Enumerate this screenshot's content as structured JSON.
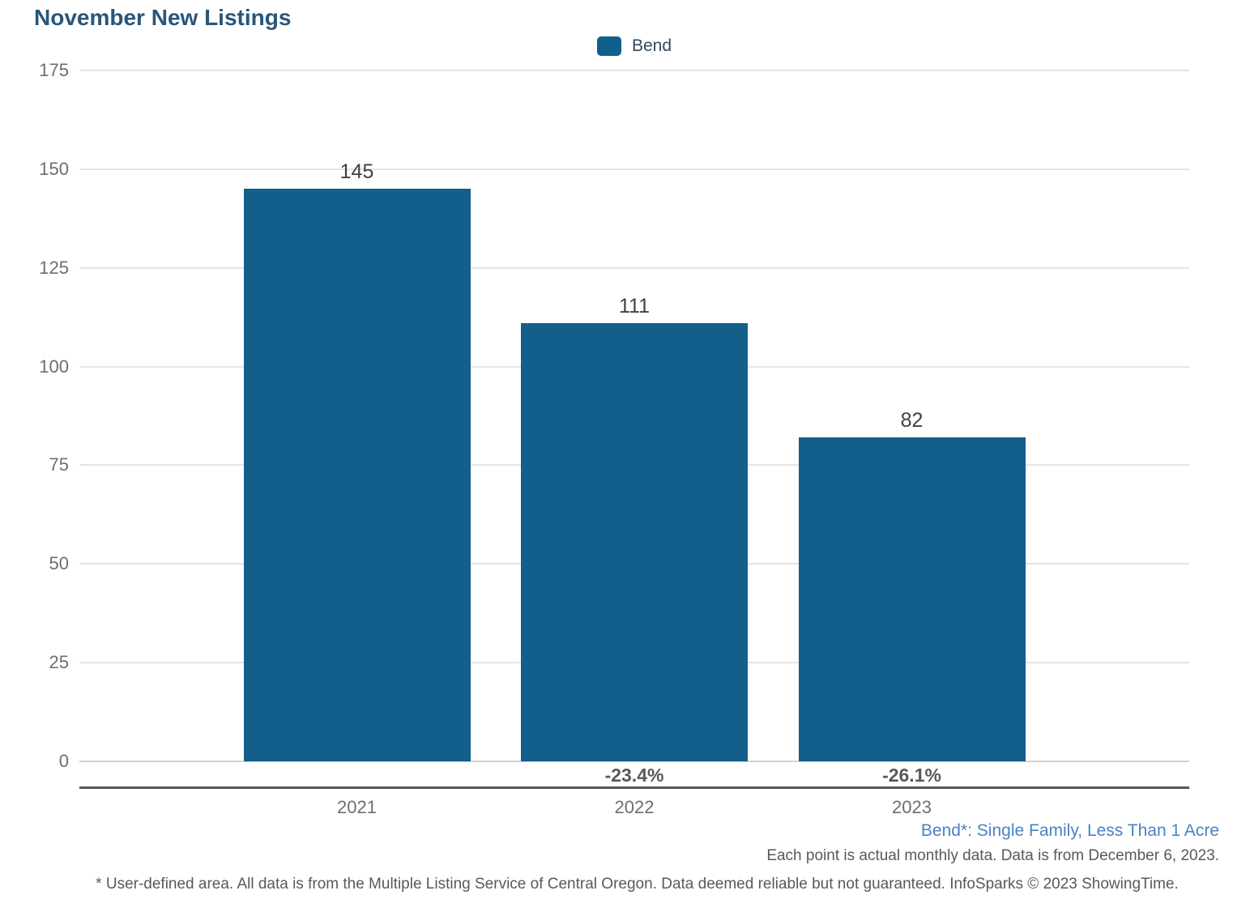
{
  "title": "November New Listings",
  "legend": {
    "label": "Bend"
  },
  "colors": {
    "bar": "#135F8C",
    "title": "#29567A",
    "legend_text": "#34495E",
    "axis_text": "#6D6E71",
    "value_text": "#414042",
    "pct_text": "#58595B",
    "subtitle_blue": "#4A82C4",
    "note_text": "#58595B",
    "gridline": "#E4E4E4",
    "zero_gridline": "#D2D2D2",
    "axis_line": "#58595B"
  },
  "chart_data": {
    "type": "bar",
    "title": "November New Listings",
    "categories": [
      "2021",
      "2022",
      "2023"
    ],
    "series": [
      {
        "name": "Bend",
        "values": [
          145,
          111,
          82
        ]
      }
    ],
    "value_labels": [
      "145",
      "111",
      "82"
    ],
    "pct_change_labels": [
      null,
      "-23.4%",
      "-26.1%"
    ],
    "xlabel": "",
    "ylabel": "",
    "ylim": [
      0,
      175
    ],
    "yticks": [
      0,
      25,
      50,
      75,
      100,
      125,
      150,
      175
    ],
    "grid": "horizontal",
    "legend_position": "top-center"
  },
  "footer": {
    "subtitle": "Bend*: Single Family, Less Than 1 Acre",
    "data_note": "Each point is actual monthly data. Data is from December 6, 2023.",
    "disclaimer": "* User-defined area. All data is from the Multiple Listing Service of Central Oregon. Data deemed reliable but not guaranteed. InfoSparks © 2023 ShowingTime."
  }
}
